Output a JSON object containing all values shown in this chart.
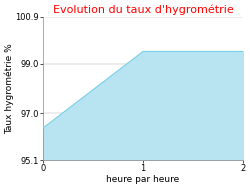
{
  "title": "Evolution du taux d'hygrométrie",
  "title_color": "#ff0000",
  "xlabel": "heure par heure",
  "ylabel": "Taux hygrométrie %",
  "x": [
    0,
    1,
    2
  ],
  "y": [
    96.4,
    99.5,
    99.5
  ],
  "ylim": [
    95.1,
    100.9
  ],
  "xlim": [
    0,
    2
  ],
  "yticks": [
    95.1,
    97.0,
    99.0,
    100.9
  ],
  "xticks": [
    0,
    1,
    2
  ],
  "line_color": "#7acfe8",
  "fill_color": "#b8e4f2",
  "figure_background": "#ffffff",
  "axes_background": "#ffffff",
  "title_fontsize": 8,
  "label_fontsize": 6.5,
  "tick_fontsize": 6
}
